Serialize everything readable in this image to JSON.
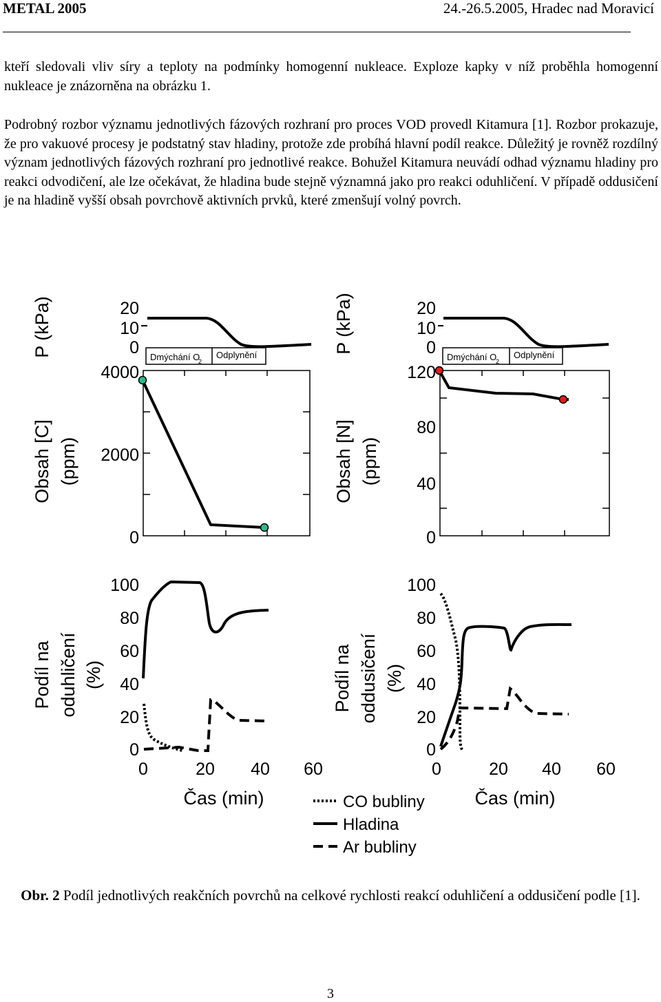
{
  "header": {
    "left": "METAL 2005",
    "right": "24.-26.5.2005, Hradec nad Moravicí"
  },
  "paragraphs": [
    "kteří sledovali vliv síry a teploty na podmínky homogenní nukleace. Exploze kapky v níž proběhla homogenní nukleace je znázorněna na obrázku 1.",
    "Podrobný rozbor významu jednotlivých fázových rozhraní pro proces VOD provedl Kitamura [1]. Rozbor prokazuje, že pro vakuové procesy je podstatný stav hladiny, protože zde probíhá hlavní podíl reakce. Důležitý je rovněž rozdílný význam jednotlivých fázových rozhraní pro jednotlivé reakce. Bohužel Kitamura neuvádí odhad významu hladiny pro reakci odvodičení, ale lze očekávat, že hladina bude stejně významná jako pro reakci oduhličení. V případě oddusičení je na hladině vyšší obsah povrchově aktivních prvků, které zmenšují volný povrch."
  ],
  "figure": {
    "left_panel": {
      "pressure_label": "P (kPa)",
      "pressure_ticks": [
        "20",
        "10",
        "0"
      ],
      "phase_labels": [
        "Dmýchání O",
        "2",
        "Odplynění"
      ],
      "content_label_line1": "Obsah [C]",
      "content_label_line2": "(ppm)",
      "content_ticks": [
        "4000",
        "2000",
        "0"
      ],
      "share_label_line1": "Podíl na",
      "share_label_line2": "oduhličení",
      "share_label_line3": "(%)",
      "share_ticks": [
        "100",
        "80",
        "60",
        "40",
        "20",
        "0"
      ],
      "time_ticks": [
        "0",
        "20",
        "40",
        "60"
      ],
      "time_label": "Čas (min)"
    },
    "right_panel": {
      "pressure_label": "P (kPa)",
      "pressure_ticks": [
        "20",
        "10",
        "0"
      ],
      "phase_labels": [
        "Dmýchání O",
        "2",
        "Odplynění"
      ],
      "content_label_line1": "Obsah [N]",
      "content_label_line2": "(ppm)",
      "content_ticks": [
        "120",
        "80",
        "40",
        "0"
      ],
      "share_label_line1": "Podíl na",
      "share_label_line2": "oddusičení",
      "share_label_line3": "(%)",
      "share_ticks": [
        "100",
        "80",
        "60",
        "40",
        "20",
        "0"
      ],
      "time_ticks": [
        "0",
        "20",
        "40",
        "60"
      ],
      "time_label": "Čas (min)"
    },
    "legend": [
      "CO bubliny",
      "Hladina",
      "Ar bubliny"
    ],
    "colors": {
      "carbon_marker": "#2fb88a",
      "nitrogen_marker": "#d62020"
    }
  },
  "caption": {
    "label": "Obr. 2",
    "text": " Podíl jednotlivých reakčních povrchů na celkové rychlosti reakcí oduhličení a oddusičení podle [1]."
  },
  "page_number": "3"
}
